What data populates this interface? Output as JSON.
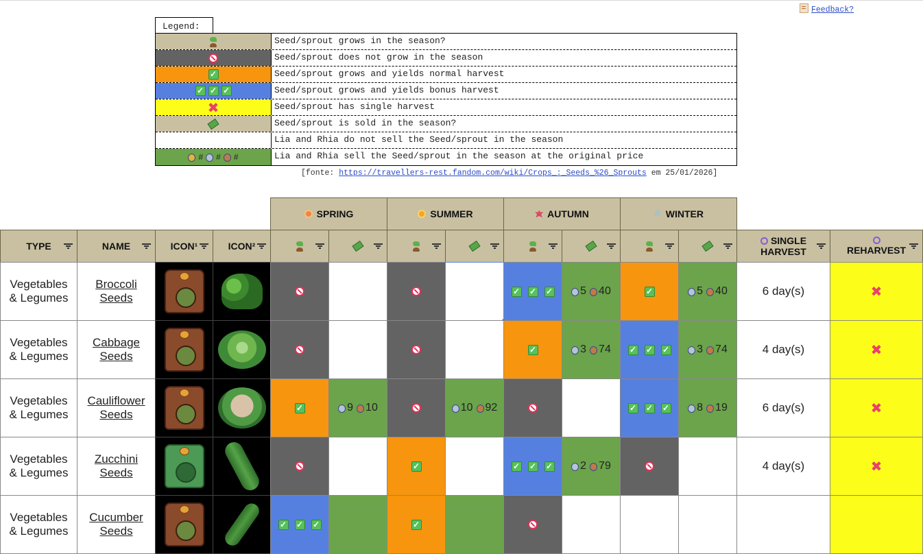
{
  "feedback_label": "Feedback?",
  "legend": {
    "title": "Legend:",
    "rows": [
      {
        "swatch": "tan",
        "icons": [
          "sprout"
        ],
        "text": "Seed/sprout grows in the season?"
      },
      {
        "swatch": "gray",
        "icons": [
          "ban"
        ],
        "text": "Seed/sprout does not grow in the season"
      },
      {
        "swatch": "orange",
        "icons": [
          "check"
        ],
        "text": "Seed/sprout grows and yields normal harvest"
      },
      {
        "swatch": "blue",
        "icons": [
          "check",
          "check",
          "check"
        ],
        "text": "Seed/sprout grows and yields bonus harvest"
      },
      {
        "swatch": "yellow",
        "icons": [
          "x"
        ],
        "text": "Seed/sprout has single harvest"
      },
      {
        "swatch": "tan",
        "icons": [
          "money"
        ],
        "text": "Seed/sprout is sold in the season?"
      },
      {
        "swatch": "white",
        "icons": [],
        "text": "Lia and Rhia do not sell the Seed/sprout in the season"
      },
      {
        "swatch": "green",
        "icons": [
          "medal1",
          "#",
          "medal2",
          "#",
          "medal3",
          "#"
        ],
        "text": "Lia and Rhia sell the Seed/sprout in the season at the original price"
      }
    ]
  },
  "source": {
    "prefix": "[fonte: ",
    "link": "https://travellers-rest.fandom.com/wiki/Crops_:_Seeds_%26_Sprouts",
    "suffix": " em 25/01/2026]"
  },
  "seasons": [
    "SPRING",
    "SUMMER",
    "AUTUMN",
    "WINTER"
  ],
  "columns": {
    "type": "TYPE",
    "name": "NAME",
    "icon1": "ICON¹",
    "icon2": "ICON²",
    "single_harvest": "SINGLE HARVEST",
    "reharvest": "REHARVEST"
  },
  "rows": [
    {
      "type": "Vegetables & Legumes",
      "name": "Broccoli Seeds",
      "crop": "broccoli",
      "cells": [
        {
          "kind": "no"
        },
        {
          "kind": "blank"
        },
        {
          "kind": "no"
        },
        {
          "kind": "blank",
          "selected": true
        },
        {
          "kind": "bonus"
        },
        {
          "kind": "sold",
          "medal": "m2",
          "a": "5",
          "medal2": "m3",
          "b": "40"
        },
        {
          "kind": "normal"
        },
        {
          "kind": "sold",
          "medal": "m2",
          "a": "5",
          "medal2": "m3",
          "b": "40"
        }
      ],
      "single": "6 day(s)",
      "reharvest": "x"
    },
    {
      "type": "Vegetables & Legumes",
      "name": "Cabbage Seeds",
      "crop": "cabbage",
      "cells": [
        {
          "kind": "no"
        },
        {
          "kind": "blank"
        },
        {
          "kind": "no"
        },
        {
          "kind": "blank"
        },
        {
          "kind": "normal"
        },
        {
          "kind": "sold",
          "medal": "m2",
          "a": "3",
          "medal2": "m3",
          "b": "74"
        },
        {
          "kind": "bonus"
        },
        {
          "kind": "sold",
          "medal": "m2",
          "a": "3",
          "medal2": "m3",
          "b": "74"
        }
      ],
      "single": "4 day(s)",
      "reharvest": "x"
    },
    {
      "type": "Vegetables & Legumes",
      "name": "Cauliflower Seeds",
      "crop": "cauliflower",
      "cells": [
        {
          "kind": "normal"
        },
        {
          "kind": "sold",
          "medal": "m2",
          "a": "9",
          "medal2": "m3",
          "b": "10"
        },
        {
          "kind": "no"
        },
        {
          "kind": "sold",
          "medal": "m2",
          "a": "10",
          "medal2": "m3",
          "b": "92"
        },
        {
          "kind": "no"
        },
        {
          "kind": "blank"
        },
        {
          "kind": "bonus"
        },
        {
          "kind": "sold",
          "medal": "m2",
          "a": "8",
          "medal2": "m3",
          "b": "19"
        }
      ],
      "single": "6 day(s)",
      "reharvest": "x"
    },
    {
      "type": "Vegetables & Legumes",
      "name": "Zucchini Seeds",
      "crop": "zucchini",
      "cells": [
        {
          "kind": "no"
        },
        {
          "kind": "blank"
        },
        {
          "kind": "normal"
        },
        {
          "kind": "blank"
        },
        {
          "kind": "bonus"
        },
        {
          "kind": "sold",
          "medal": "m2",
          "a": "2",
          "medal2": "m3",
          "b": "79"
        },
        {
          "kind": "no"
        },
        {
          "kind": "blank"
        }
      ],
      "single": "4 day(s)",
      "reharvest": "x"
    },
    {
      "type": "Vegetables & Legumes",
      "name": "Cucumber Seeds",
      "crop": "cucumber",
      "cells": [
        {
          "kind": "bonus"
        },
        {
          "kind": "sold"
        },
        {
          "kind": "normal"
        },
        {
          "kind": "sold"
        },
        {
          "kind": "no"
        },
        {
          "kind": "blank"
        },
        {
          "kind": "blank"
        },
        {
          "kind": "blank"
        }
      ],
      "single": "",
      "reharvest": "yellow"
    }
  ],
  "colors": {
    "header_tan": "#c9c0a2",
    "no_grow_gray": "#636363",
    "normal_orange": "#f7950e",
    "bonus_blue": "#5680e0",
    "sold_green": "#6ba44b",
    "single_yellow": "#fdfd1a",
    "link_blue": "#2a4cc7"
  }
}
